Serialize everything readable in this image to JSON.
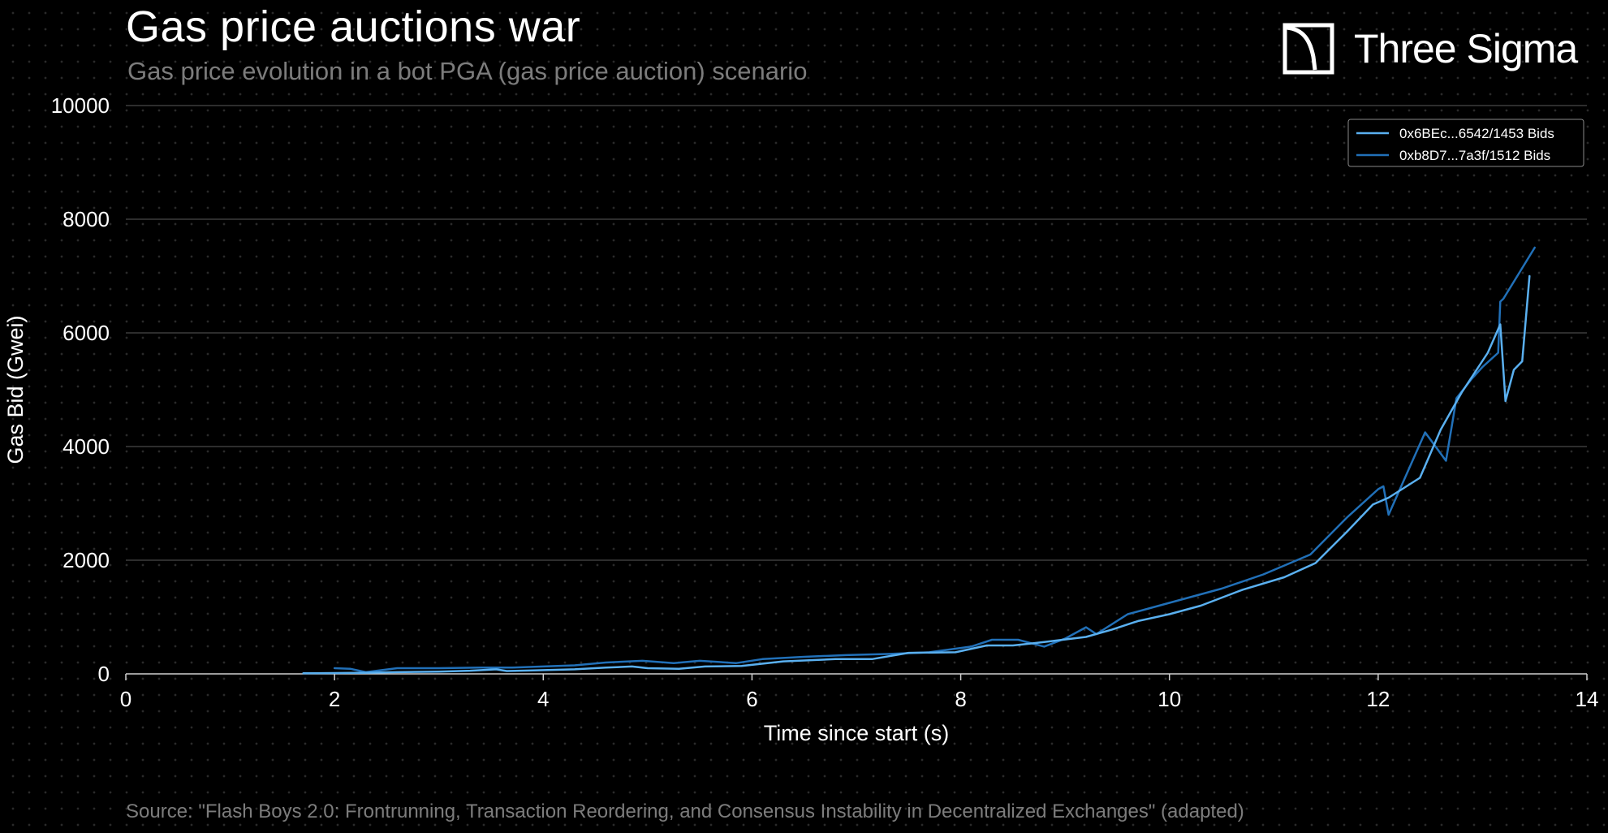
{
  "header": {
    "title": "Gas price auctions war",
    "subtitle": "Gas price evolution in a bot PGA (gas price auction) scenario"
  },
  "brand": {
    "name": "Three Sigma"
  },
  "footer": {
    "source": "Source: \"Flash Boys 2.0: Frontrunning, Transaction Reordering, and Consensus Instability in Decentralized Exchanges\" (adapted)"
  },
  "colors": {
    "background": "#000000",
    "series1": "#5ab0f0",
    "series2": "#2170b8",
    "grid": "#5a5a5a",
    "muted_text": "#7c7c7c"
  },
  "chart_data": {
    "type": "line",
    "title": "Gas price auctions war",
    "xlabel": "Time since start (s)",
    "ylabel": "Gas Bid (Gwei)",
    "xlim": [
      0,
      14
    ],
    "ylim": [
      0,
      10000
    ],
    "xticks": [
      0,
      2,
      4,
      6,
      8,
      10,
      12,
      14
    ],
    "yticks": [
      0,
      2000,
      4000,
      6000,
      8000,
      10000
    ],
    "grid": "horizontal",
    "legend_position": "top-right",
    "series": [
      {
        "name": "0x6BEc...6542/1453 Bids",
        "color": "#5ab0f0",
        "x": [
          1.7,
          2.0,
          2.3,
          2.6,
          3.0,
          3.3,
          3.55,
          3.65,
          3.9,
          4.3,
          4.6,
          4.85,
          5.0,
          5.3,
          5.55,
          5.9,
          6.3,
          6.8,
          7.15,
          7.5,
          7.95,
          8.25,
          8.5,
          8.8,
          9.2,
          9.45,
          9.7,
          10.0,
          10.3,
          10.7,
          11.1,
          11.4,
          11.7,
          11.95,
          12.1,
          12.4,
          12.6,
          12.8,
          13.05,
          13.17,
          13.22,
          13.3,
          13.38,
          13.45
        ],
        "y": [
          10,
          15,
          20,
          30,
          40,
          55,
          80,
          50,
          60,
          80,
          110,
          130,
          100,
          90,
          130,
          140,
          220,
          260,
          260,
          370,
          380,
          500,
          500,
          560,
          650,
          780,
          930,
          1050,
          1200,
          1480,
          1700,
          1950,
          2500,
          2980,
          3100,
          3450,
          4300,
          4950,
          5650,
          6150,
          4800,
          5350,
          5500,
          7000
        ]
      },
      {
        "name": "0xb8D7...7a3f/1512 Bids",
        "color": "#2170b8",
        "x": [
          2.0,
          2.15,
          2.3,
          2.6,
          3.0,
          3.4,
          3.7,
          4.0,
          4.3,
          4.6,
          4.95,
          5.25,
          5.5,
          5.85,
          6.1,
          6.5,
          6.9,
          7.3,
          7.7,
          8.1,
          8.3,
          8.55,
          8.8,
          9.0,
          9.2,
          9.3,
          9.6,
          10.0,
          10.5,
          10.9,
          11.35,
          11.7,
          12.0,
          12.05,
          12.1,
          12.45,
          12.65,
          12.75,
          12.9,
          13.0,
          13.15,
          13.17,
          13.2,
          13.5
        ],
        "y": [
          100,
          90,
          30,
          100,
          100,
          110,
          110,
          130,
          150,
          200,
          230,
          190,
          230,
          190,
          260,
          300,
          330,
          350,
          380,
          480,
          600,
          600,
          480,
          620,
          820,
          700,
          1050,
          1250,
          1500,
          1750,
          2100,
          2750,
          3250,
          3300,
          2800,
          4250,
          3750,
          4850,
          5200,
          5400,
          5650,
          6550,
          6600,
          7500
        ]
      }
    ]
  }
}
